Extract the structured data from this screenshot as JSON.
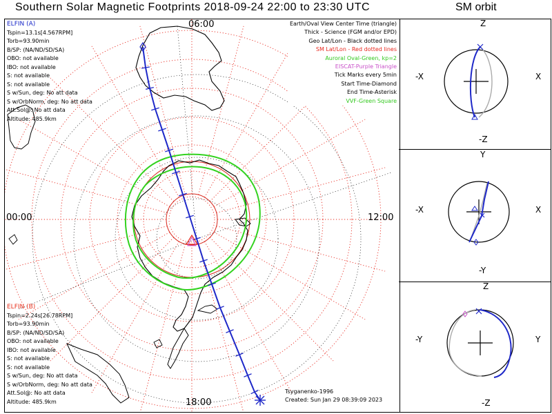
{
  "header": {
    "title": "Southern Solar Magnetic Footprints 2018-09-24 22:00 to 23:30 UTC",
    "orbit_title": "SM orbit"
  },
  "map": {
    "mlt_labels": {
      "top": "06:00",
      "bottom": "18:00",
      "left": "00:00",
      "right": "12:00"
    }
  },
  "sat_a": {
    "name": "ELFIN (A)",
    "lines": [
      "Tspin=13.1s[4.567RPM]",
      "Torb=93.90min",
      "B/SP: (NA/ND/SD/SA)",
      "OBO: not available",
      "IBO: not available",
      "S: not available",
      "S: not available",
      "S w/Sun, deg: No att data",
      "S w/OrbNorm, deg: No att data",
      "Att.Sol@: No att data",
      "Altitude: 485.9km"
    ]
  },
  "sat_b": {
    "name": "ELFIN (B)",
    "lines": [
      "Tspin=2.24s[26.78RPM]",
      "Torb=93.90min",
      "B/SP: (NA/ND/SD/SA)",
      "OBO: not available",
      "IBO: not available",
      "S: not available",
      "S: not available",
      "S w/Sun, deg: No att data",
      "S w/OrbNorm, deg: No att data",
      "Att.Sol@: No att data",
      "Altitude: 485.9km"
    ]
  },
  "legend": [
    {
      "text": "Earth/Oval View Center Time (triangle)",
      "color": "#000000"
    },
    {
      "text": "Thick - Science (FGM and/or EPD)",
      "color": "#000000"
    },
    {
      "text": "Geo Lat/Lon - Black dotted lines",
      "color": "#000000"
    },
    {
      "text": "SM Lat/Lon - Red dotted lines",
      "color": "#e8281e"
    },
    {
      "text": "Auroral Oval-Green, kp=2",
      "color": "#32c81e"
    },
    {
      "text": "EISCAT-Purple Triangle",
      "color": "#c850c8"
    },
    {
      "text": "Tick Marks every 5min",
      "color": "#000000"
    },
    {
      "text": "Start Time-Diamond",
      "color": "#000000"
    },
    {
      "text": "End Time-Asterisk",
      "color": "#000000"
    },
    {
      "text": "VVF-Green Square",
      "color": "#32c81e"
    }
  ],
  "footer": {
    "model": "Tsyganenko-1996",
    "created": "Created: Sun Jan 29 08:39:09 2023"
  },
  "orbit_panels": [
    {
      "top": "Z",
      "bottom": "-Z",
      "left": "-X",
      "right": "X"
    },
    {
      "top": "Y",
      "bottom": "-Y",
      "left": "-X",
      "right": "X"
    },
    {
      "top": "Z",
      "bottom": "-Z",
      "left": "-Y",
      "right": "Y"
    }
  ],
  "colors": {
    "track_a": "#1e28c8",
    "sm_grid": "#e8281e",
    "oval": "#32d21e",
    "eiscat": "#c850c8",
    "geo_grid": "#000000"
  }
}
